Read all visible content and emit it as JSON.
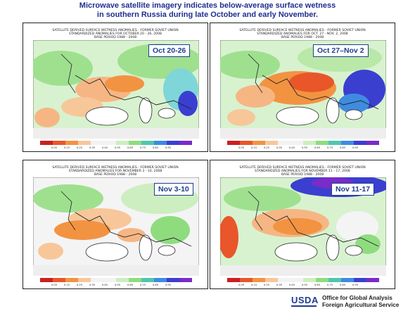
{
  "headline": {
    "line1": "Microwave satellite imagery indicates below-average surface wetness",
    "line2": "in southern Russia during late October and early November."
  },
  "panels": [
    {
      "title": "SATELLITE DERIVED SURFACE WETNESS ANOMALIES - FORMER SOVIET UNION",
      "subtitle": "STANDARDIZED ANOMALIES FOR OCTOBER 20 - 26, 2008",
      "base": "BASE PERIOD 1988 - 2008",
      "date_label": "Oct 20-26"
    },
    {
      "title": "SATELLITE DERIVED SURFACE WETNESS ANOMALIES - FORMER SOVIET UNION",
      "subtitle": "STANDARDIZED ANOMALIES FOR OCT. 27 - NOV. 2, 2008",
      "base": "BASE PERIOD 1988 - 2008",
      "date_label": "Oct 27–Nov 2"
    },
    {
      "title": "SATELLITE DERIVED SURFACE WETNESS ANOMALIES - FORMER SOVIET UNION",
      "subtitle": "STANDARDIZED ANOMALIES FOR NOVEMBER 3 - 10, 2008",
      "base": "BASE PERIOD 1988 - 2008",
      "date_label": "Nov 3-10"
    },
    {
      "title": "SATELLITE DERIVED SURFACE WETNESS ANOMALIES - FORMER SOVIET UNION",
      "subtitle": "STANDARDIZED ANOMALIES FOR NOVEMBER 11 - 17, 2008",
      "base": "BASE PERIOD 1988 - 2008",
      "date_label": "Nov 11-17"
    }
  ],
  "legend": {
    "colors": [
      "#cc1f1f",
      "#e8562a",
      "#f29342",
      "#f7c79a",
      "#f2f2f2",
      "#f2f2f2",
      "#cdeec0",
      "#8fdc7f",
      "#4fc6b0",
      "#3f8be0",
      "#3a3fd0",
      "#7a2bc8"
    ],
    "ticks": [
      "0.05",
      "0.15",
      "0.25",
      "0.35",
      "0.45",
      "0.55",
      "0.65",
      "0.75",
      "0.85",
      "0.95"
    ]
  },
  "palette": {
    "dry_strong": "#e8562a",
    "dry_light": "#f6b684",
    "wet_light": "#9fe08f",
    "wet_blue": "#3a3fd0",
    "wet_cyan": "#7fd6d8",
    "water": "#ffffff"
  },
  "footer": {
    "usda": "USDA",
    "line1": "Office for Global Analysis",
    "line2": "Foreign Agricultural Service"
  }
}
